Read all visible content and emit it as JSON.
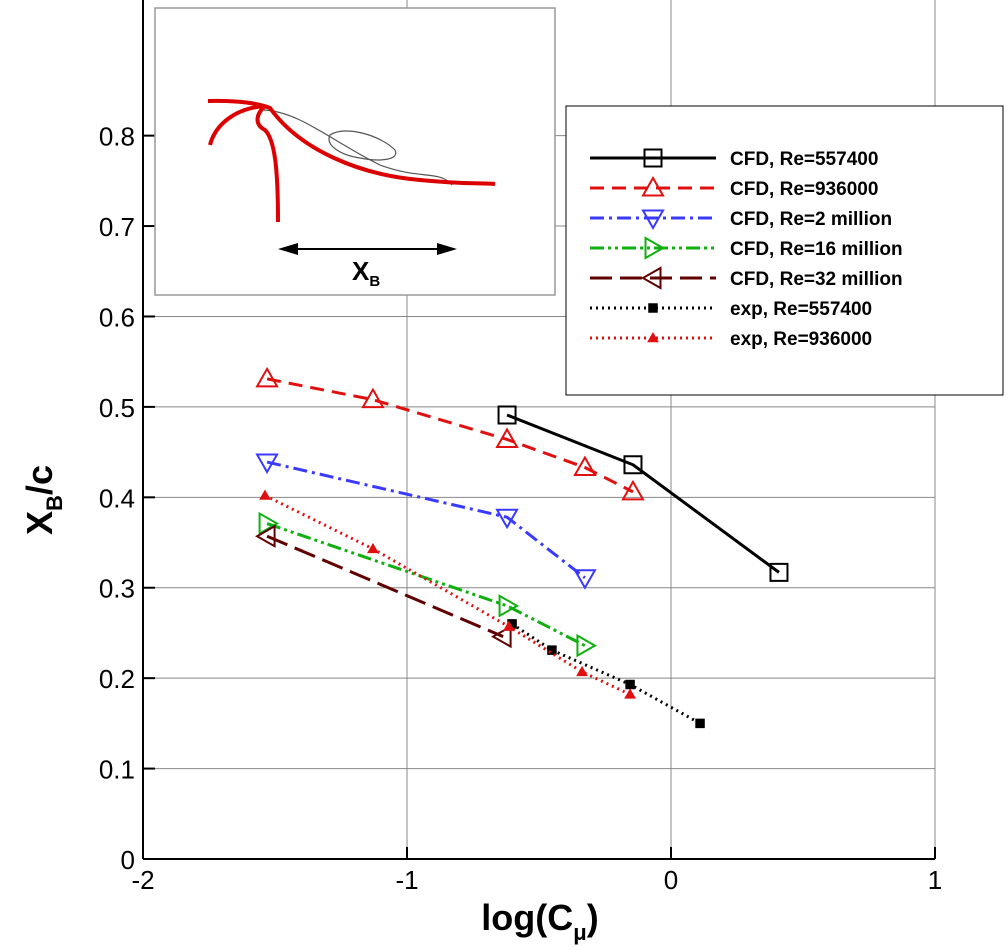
{
  "chart_data": {
    "type": "line",
    "x_label": [
      "log(C",
      "μ",
      ")"
    ],
    "y_label": [
      "X",
      "B",
      "/c"
    ],
    "inset_label": [
      "X",
      "B"
    ],
    "xlim": [
      -2,
      1
    ],
    "ylim": [
      0,
      0.95
    ],
    "xticks": [
      -2,
      -1,
      0,
      1
    ],
    "yticks": [
      0,
      0.1,
      0.2,
      0.3,
      0.4,
      0.5,
      0.6,
      0.7,
      0.8
    ],
    "grid": true,
    "legend": "upper right",
    "series": [
      {
        "name": "CFD, Re=557400",
        "color": "#000000",
        "dash": "solid",
        "marker": "square",
        "open": true,
        "x": [
          -0.621,
          -0.144,
          0.409
        ],
        "values": [
          0.491,
          0.436,
          0.317
        ]
      },
      {
        "name": "CFD, Re=936000",
        "color": "#e01010",
        "dash": "dash",
        "marker": "triangle-up",
        "open": true,
        "x": [
          -1.53,
          -1.129,
          -0.621,
          -0.326,
          -0.144
        ],
        "values": [
          0.531,
          0.508,
          0.464,
          0.433,
          0.406
        ]
      },
      {
        "name": "CFD, Re=2 million",
        "color": "#3a3aff",
        "dash": "dashdot",
        "marker": "triangle-down",
        "open": true,
        "x": [
          -1.53,
          -0.621,
          -0.326
        ],
        "values": [
          0.439,
          0.378,
          0.311
        ]
      },
      {
        "name": "CFD, Re=16 million",
        "color": "#10b010",
        "dash": "dashdotdot",
        "marker": "triangle-right",
        "open": true,
        "x": [
          -1.53,
          -0.621,
          -0.326
        ],
        "values": [
          0.371,
          0.28,
          0.236
        ]
      },
      {
        "name": "CFD, Re=32 million",
        "color": "#600000",
        "dash": "longdash",
        "marker": "triangle-left",
        "open": true,
        "x": [
          -1.53,
          -0.636
        ],
        "values": [
          0.357,
          0.246
        ]
      },
      {
        "name": "exp, Re=557400",
        "color": "#000000",
        "dash": "dot",
        "marker": "square",
        "open": false,
        "x": [
          -0.602,
          -0.451,
          -0.155,
          0.11
        ],
        "values": [
          0.26,
          0.231,
          0.193,
          0.15
        ]
      },
      {
        "name": "exp, Re=936000",
        "color": "#e01010",
        "dash": "dot",
        "marker": "triangle-up",
        "open": false,
        "x": [
          -1.538,
          -1.129,
          -0.614,
          -0.337,
          -0.155
        ],
        "values": [
          0.402,
          0.343,
          0.257,
          0.207,
          0.182
        ]
      }
    ]
  }
}
